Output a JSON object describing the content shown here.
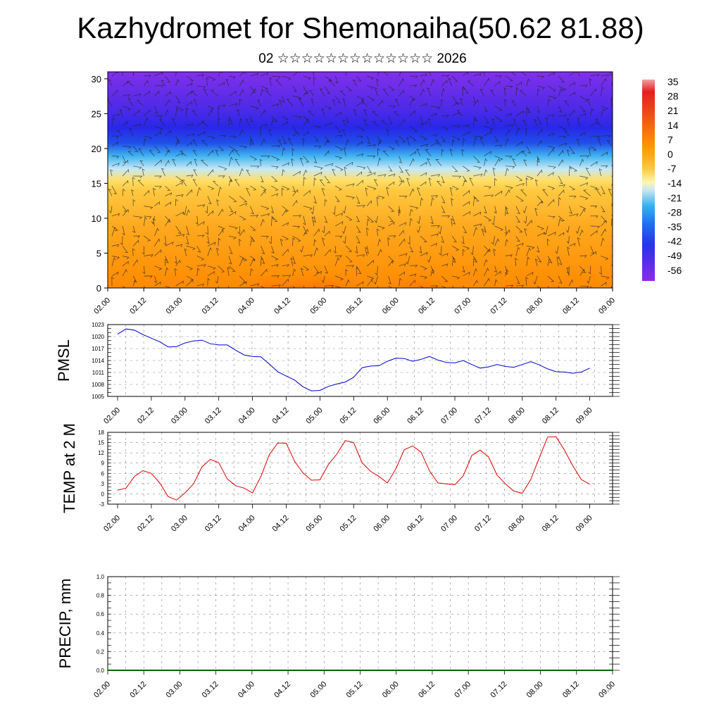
{
  "header": {
    "title": "Kazhydromet for Shemonaiha(50.62 81.88)",
    "subtitle": "02 ☆☆☆☆☆☆☆☆☆☆☆☆☆ 2026"
  },
  "chart_data": [
    {
      "type": "heatmap",
      "name": "temperature-wind cross-section",
      "x_tick_labels": [
        "02.00",
        "02.12",
        "03.00",
        "03.12",
        "04.00",
        "04.12",
        "05.00",
        "05.12",
        "06.00",
        "06.12",
        "07.00",
        "07.12",
        "08.00",
        "08.12",
        "09.00"
      ],
      "y_ticks": [
        0,
        5,
        10,
        15,
        20,
        25,
        30
      ],
      "ylim": [
        0,
        31
      ],
      "colorbar_labels": [
        "35",
        "28",
        "21",
        "14",
        "7",
        "0",
        "-7",
        "-14",
        "-21",
        "-28",
        "-35",
        "-42",
        "-49",
        "-56"
      ],
      "colors": {
        "hot": "#e8141e",
        "warm": "#ff8c00",
        "mild": "#ffd040",
        "cold": "#28a0f0",
        "frigid": "#2838f0",
        "stratosphere": "#7828e8"
      },
      "surface_warm_spots_x": [
        4.5,
        5.5,
        6.2,
        8.6
      ]
    },
    {
      "type": "line",
      "ylabel": "PMSL",
      "color": "#0000cc",
      "y_ticks": [
        1005,
        1008,
        1011,
        1014,
        1017,
        1020,
        1023
      ],
      "ylim": [
        1005,
        1023
      ],
      "x_tick_labels": [
        "02.00",
        "02.12",
        "03.00",
        "03.12",
        "04.00",
        "04.12",
        "05.00",
        "05.12",
        "06.00",
        "06.12",
        "07.00",
        "07.12",
        "08.00",
        "08.12",
        "09.00"
      ],
      "x": [
        0,
        0.25,
        0.5,
        0.75,
        1,
        1.25,
        1.5,
        1.75,
        2,
        2.25,
        2.5,
        2.75,
        3,
        3.25,
        3.5,
        3.75,
        4,
        4.25,
        4.5,
        4.75,
        5,
        5.25,
        5.5,
        5.75,
        6,
        6.25,
        6.5,
        6.75,
        7,
        7.25,
        7.5,
        7.75,
        8,
        8.25,
        8.5,
        8.75,
        9,
        9.25,
        9.5,
        9.75,
        10,
        10.25,
        10.5,
        10.75,
        11,
        11.25,
        11.5,
        11.75,
        12,
        12.25,
        12.5,
        12.75,
        13,
        13.25,
        13.5,
        13.75,
        14
      ],
      "values": [
        1020.6,
        1021.9,
        1021.6,
        1020.5,
        1019.6,
        1018.7,
        1017.4,
        1017.5,
        1018.4,
        1018.9,
        1019.1,
        1018.2,
        1017.9,
        1017.9,
        1016.6,
        1015.4,
        1015.0,
        1014.9,
        1013.1,
        1011.2,
        1010.1,
        1009.1,
        1007.4,
        1006.4,
        1006.5,
        1007.5,
        1008.1,
        1008.6,
        1009.8,
        1012.2,
        1012.6,
        1012.7,
        1013.8,
        1014.6,
        1014.5,
        1013.8,
        1014.3,
        1015.0,
        1014.1,
        1013.5,
        1013.4,
        1014.0,
        1013.0,
        1012.1,
        1012.4,
        1013.0,
        1012.5,
        1012.3,
        1013.0,
        1013.7,
        1012.9,
        1011.9,
        1011.2,
        1011.1,
        1010.8,
        1011.1,
        1012.1
      ]
    },
    {
      "type": "line",
      "ylabel": "TEMP at 2 M",
      "color": "#dd0000",
      "y_ticks": [
        -3,
        0,
        3,
        6,
        9,
        12,
        15,
        18
      ],
      "ylim": [
        -3,
        18
      ],
      "x_tick_labels": [
        "02.00",
        "02.12",
        "03.00",
        "03.12",
        "04.00",
        "04.12",
        "05.00",
        "05.12",
        "06.00",
        "06.12",
        "07.00",
        "07.12",
        "08.00",
        "08.12",
        "09.00"
      ],
      "x": [
        0,
        0.25,
        0.5,
        0.75,
        1,
        1.25,
        1.5,
        1.75,
        2,
        2.25,
        2.5,
        2.75,
        3,
        3.25,
        3.5,
        3.75,
        4,
        4.25,
        4.5,
        4.75,
        5,
        5.25,
        5.5,
        5.75,
        6,
        6.25,
        6.5,
        6.75,
        7,
        7.25,
        7.5,
        7.75,
        8,
        8.25,
        8.5,
        8.75,
        9,
        9.25,
        9.5,
        9.75,
        10,
        10.25,
        10.5,
        10.75,
        11,
        11.25,
        11.5,
        11.75,
        12,
        12.25,
        12.5,
        12.75,
        13,
        13.25,
        13.5,
        13.75,
        14
      ],
      "values": [
        1.1,
        1.7,
        5.1,
        6.8,
        6.0,
        3.2,
        -0.8,
        -1.8,
        0.3,
        2.9,
        7.9,
        10.1,
        9.1,
        4.4,
        2.4,
        1.7,
        0.3,
        5.1,
        11.5,
        14.9,
        14.8,
        9.5,
        6.1,
        4.0,
        4.1,
        8.6,
        11.6,
        15.6,
        15.0,
        9.1,
        6.6,
        5.1,
        3.2,
        7.3,
        12.9,
        14.0,
        12.2,
        6.7,
        3.2,
        2.9,
        2.7,
        5.3,
        11.2,
        12.8,
        10.8,
        5.5,
        2.9,
        0.8,
        0.2,
        4.2,
        10.5,
        16.6,
        16.7,
        12.8,
        8.2,
        4.2,
        2.8
      ]
    },
    {
      "type": "bar",
      "ylabel": "PRECIP, mm",
      "color": "#006400",
      "y_ticks": [
        0.0,
        0.2,
        0.4,
        0.6,
        0.8,
        1.0
      ],
      "ylim": [
        0,
        1.0
      ],
      "x_tick_labels": [
        "02.00",
        "02.12",
        "03.00",
        "03.12",
        "04.00",
        "04.12",
        "05.00",
        "05.12",
        "06.00",
        "06.12",
        "07.00",
        "07.12",
        "08.00",
        "08.12",
        "09.00"
      ],
      "values": []
    }
  ]
}
